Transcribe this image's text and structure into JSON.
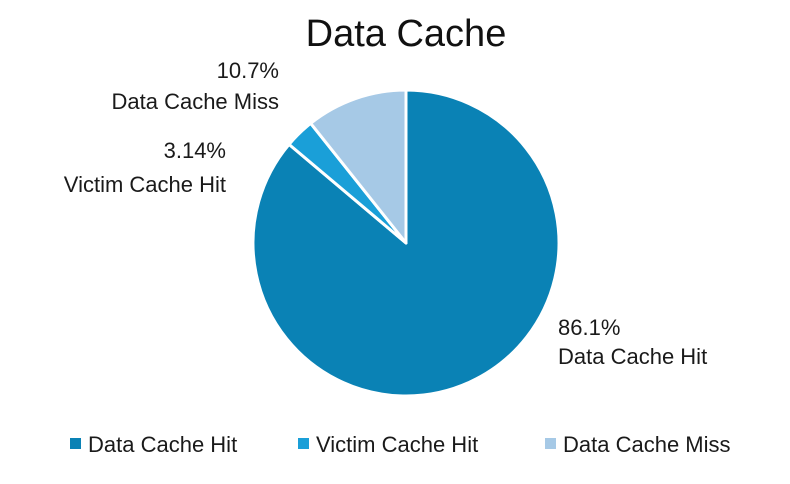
{
  "chart_data": {
    "type": "pie",
    "title": "Data Cache",
    "legend_position": "bottom",
    "slices": [
      {
        "label": "Data Cache Hit",
        "value": 86.1,
        "value_label": "86.1%",
        "color": "#0a82b5"
      },
      {
        "label": "Victim Cache Hit",
        "value": 3.14,
        "value_label": "3.14%",
        "color": "#1a9fd8"
      },
      {
        "label": "Data Cache Miss",
        "value": 10.7,
        "value_label": "10.7%",
        "color": "#a6c9e6"
      }
    ]
  }
}
